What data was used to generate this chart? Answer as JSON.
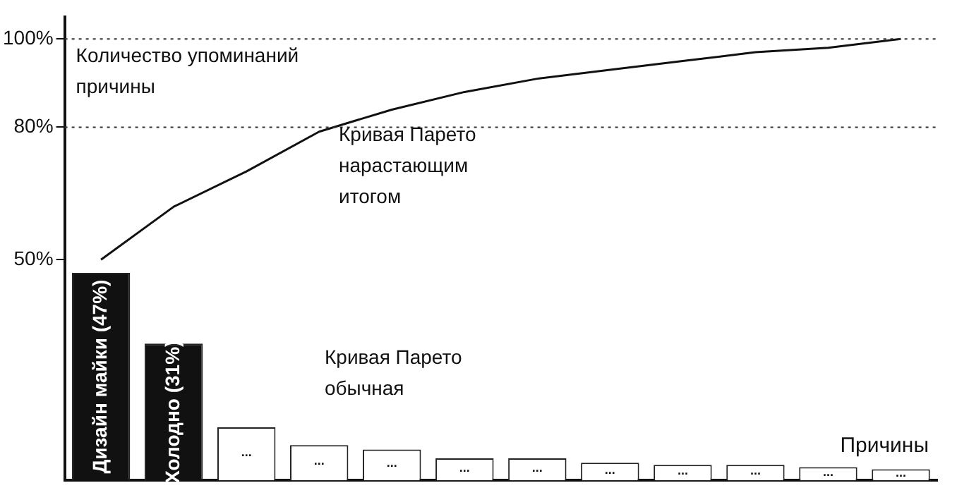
{
  "chart_data": {
    "type": "bar",
    "ylabel": "Количество упоминаний причины",
    "xlabel": "Причины",
    "categories": [
      "Дизайн майки (47%)",
      "Холодно (31%)",
      "...",
      "...",
      "...",
      "...",
      "...",
      "...",
      "...",
      "...",
      "...",
      "..."
    ],
    "series": [
      {
        "colors": [
          "#111111",
          "#111111",
          "#ffffff",
          "#ffffff",
          "#ffffff",
          "#ffffff",
          "#ffffff",
          "#ffffff",
          "#ffffff",
          "#ffffff",
          "#ffffff",
          "#ffffff"
        ],
        "values": [
          47,
          31,
          12,
          8,
          7,
          5,
          5,
          4,
          3.5,
          3.5,
          3,
          2.5
        ]
      },
      {
        "type": "line",
        "color": "#111111",
        "values": [
          50,
          62,
          70,
          79,
          84,
          88,
          91,
          93,
          95,
          97,
          98,
          100
        ]
      }
    ],
    "ylim": [
      0,
      105
    ],
    "yticks": [
      {
        "value": 50,
        "label": "50%"
      },
      {
        "value": 80,
        "label": "80%"
      },
      {
        "value": 100,
        "label": "100%"
      }
    ],
    "ref_lines": [
      {
        "axis": "y",
        "value": 80,
        "line_style": "dotted",
        "color": "#333333"
      },
      {
        "axis": "y",
        "value": 100,
        "line_style": "dotted",
        "color": "#333333"
      }
    ],
    "annotations": [
      "Кривая Парето нарастающим итогом",
      "Кривая Парето обычная"
    ],
    "grid": false,
    "legend": false,
    "marker": "none",
    "line_style": "solid"
  }
}
